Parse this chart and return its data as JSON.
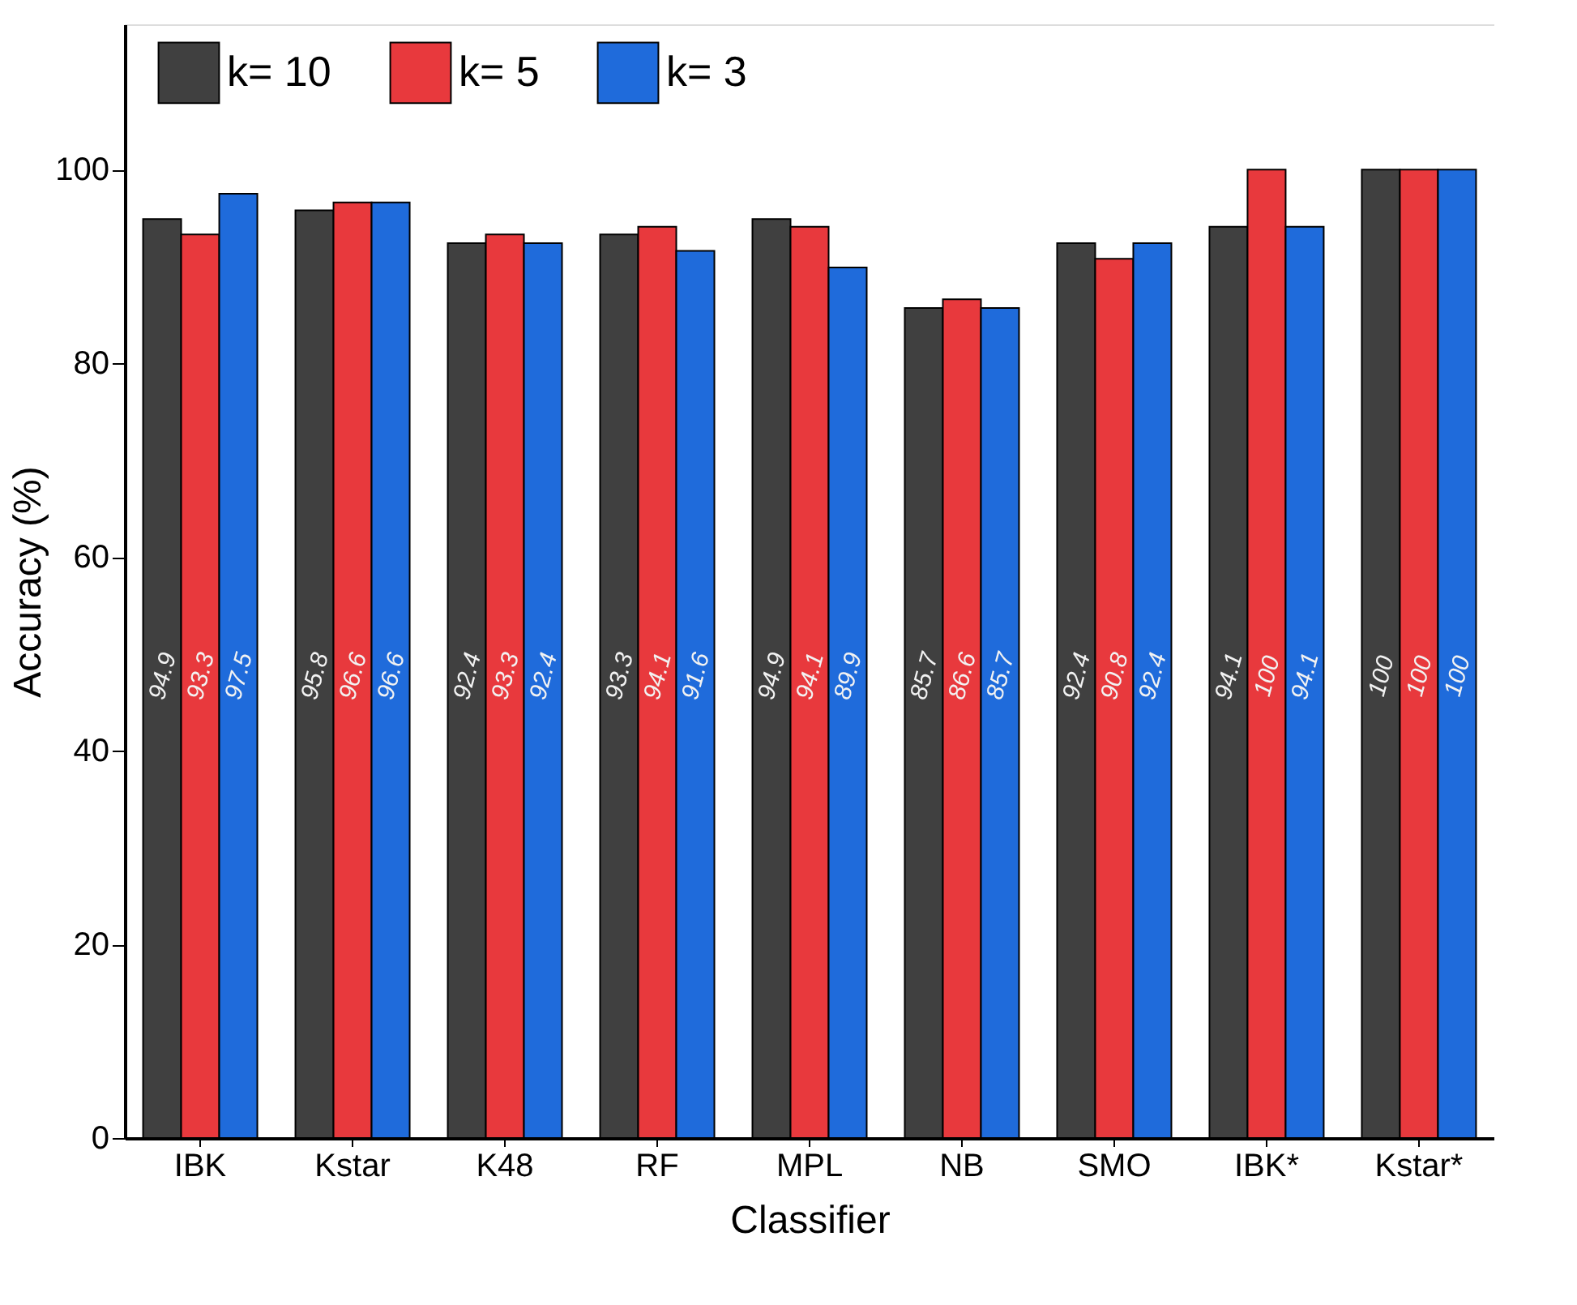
{
  "chart_data": {
    "type": "bar",
    "xlabel": "Classifier",
    "ylabel": "Accuracy (%)",
    "categories": [
      "IBK",
      "Kstar",
      "K48",
      "RF",
      "MPL",
      "NB",
      "SMO",
      "IBK*",
      "Kstar*"
    ],
    "series": [
      {
        "name": "k= 10",
        "color": "#404040",
        "values": [
          94.9,
          95.8,
          92.4,
          93.3,
          94.9,
          85.7,
          92.4,
          94.1,
          100
        ]
      },
      {
        "name": "k= 5",
        "color": "#e8393d",
        "values": [
          93.3,
          96.6,
          93.3,
          94.1,
          94.1,
          86.6,
          90.8,
          100,
          100
        ]
      },
      {
        "name": "k= 3",
        "color": "#1f6bdb",
        "values": [
          97.5,
          96.6,
          92.4,
          91.6,
          89.9,
          85.7,
          92.4,
          94.1,
          100
        ]
      }
    ],
    "ylim": [
      0,
      115
    ],
    "yticks": [
      0,
      20,
      40,
      60,
      80,
      100
    ],
    "grid": false,
    "legend": "top left",
    "data_labels": true
  }
}
